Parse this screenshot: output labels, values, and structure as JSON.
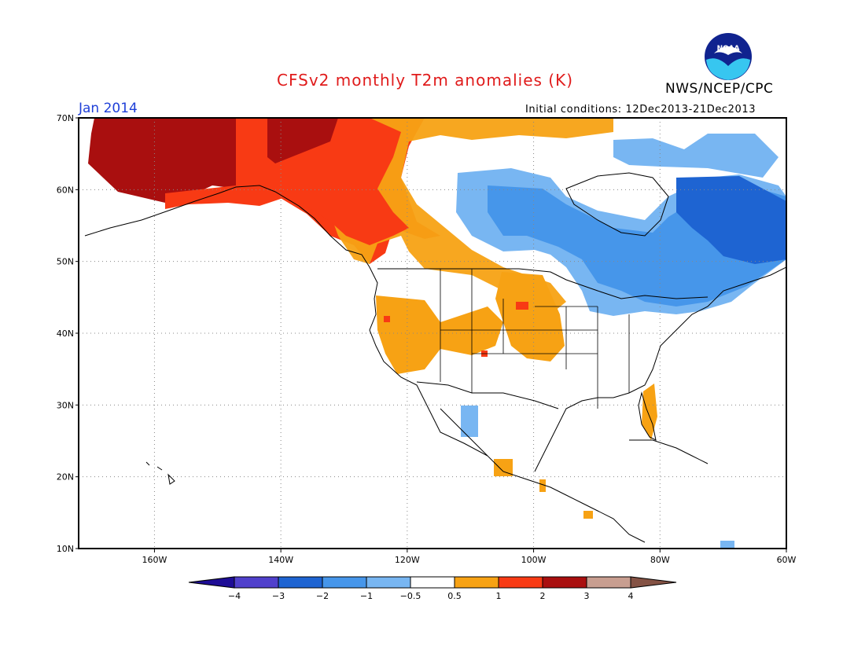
{
  "header": {
    "title": "CFSv2 monthly T2m anomalies (K)",
    "agency": "NWS/NCEP/CPC",
    "month": "Jan 2014",
    "initial_conditions": "Initial conditions: 12Dec2013-21Dec2013",
    "logo_text": "NOAA"
  },
  "map": {
    "lon_range": [
      -172,
      -60
    ],
    "lat_range": [
      10,
      70
    ],
    "lon_ticks": [
      "160W",
      "140W",
      "120W",
      "100W",
      "80W",
      "60W"
    ],
    "lat_ticks": [
      "70N",
      "60N",
      "50N",
      "40N",
      "30N",
      "20N",
      "10N"
    ],
    "grid": true
  },
  "colorbar": {
    "levels": [
      "-4",
      "-3",
      "-2",
      "-1",
      "-0.5",
      "0.5",
      "1",
      "2",
      "3",
      "4"
    ],
    "colors": [
      "#1e0d96",
      "#5040cc",
      "#1e64d2",
      "#4696ea",
      "#78b6f2",
      "#ffffff",
      "#f7a214",
      "#f83a14",
      "#a90f0f",
      "#c89e90",
      "#845244"
    ]
  },
  "colors": {
    "title": "#e01b1b",
    "month": "#1e3fd8",
    "strong_warm": "#a90f0f",
    "warm": "#f83a14",
    "mild_warm": "#f7a214",
    "mild_cool": "#78b6f2",
    "cool": "#4696ea",
    "strong_cool": "#1e64d2"
  }
}
